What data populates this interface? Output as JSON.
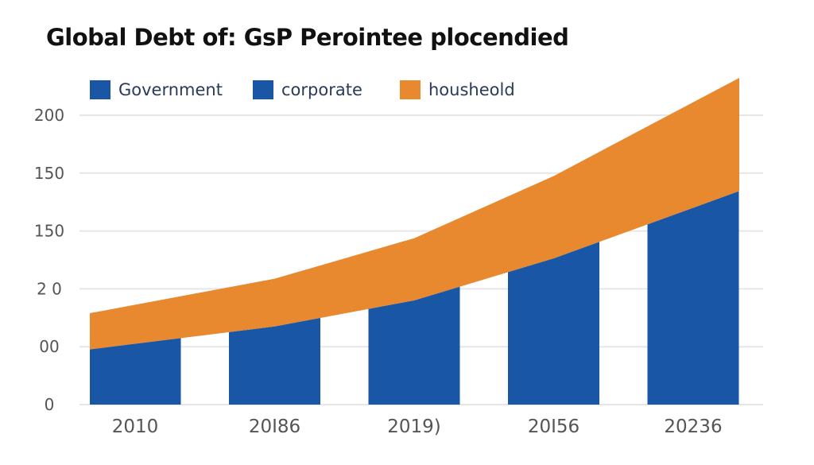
{
  "chart_data": {
    "type": "area",
    "title": "Global Debt of: GsP Perointee plocendied",
    "categories": [
      "2010",
      "20I86",
      "2019)",
      "20I56",
      "20236"
    ],
    "y_tick_labels": [
      "0",
      "00",
      "2 0",
      "150",
      "150",
      "200"
    ],
    "ylim": [
      0,
      200
    ],
    "grid": true,
    "legend_position": "top",
    "series": [
      {
        "name": "Government",
        "kind": "bar",
        "color": "#1a56a6",
        "values": [
          42,
          54,
          72,
          101,
          136
        ]
      },
      {
        "name": "corporate",
        "kind": "legend-only",
        "color": "#1a56a6"
      },
      {
        "name": "housheold",
        "kind": "stacked-area",
        "color": "#e8892f",
        "values": [
          27,
          33,
          43,
          57,
          73
        ]
      }
    ]
  }
}
